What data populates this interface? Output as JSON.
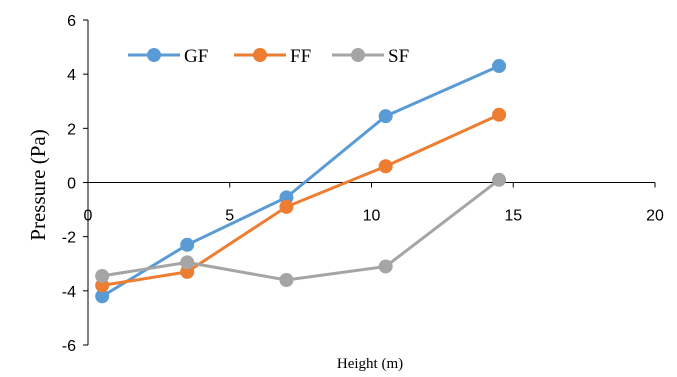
{
  "chart_data": {
    "type": "line",
    "title": "",
    "xlabel": "Height (m)",
    "ylabel": "Pressure  (Pa)",
    "xlim": [
      0,
      20
    ],
    "ylim": [
      -6,
      6
    ],
    "x_ticks": [
      0,
      5,
      10,
      15,
      20
    ],
    "y_ticks": [
      6,
      4,
      2,
      0,
      -2,
      -4,
      -6
    ],
    "grid": false,
    "legend_position": "top-left",
    "series": [
      {
        "name": "GF",
        "color": "#5B9BD5",
        "x": [
          0.5,
          3.5,
          7,
          10.5,
          14.5
        ],
        "y": [
          -4.2,
          -2.3,
          -0.55,
          2.45,
          4.3
        ]
      },
      {
        "name": "FF",
        "color": "#ED7D31",
        "x": [
          0.5,
          3.5,
          7,
          10.5,
          14.5
        ],
        "y": [
          -3.8,
          -3.3,
          -0.9,
          0.6,
          2.5
        ]
      },
      {
        "name": "SF",
        "color": "#A5A5A5",
        "x": [
          0.5,
          3.5,
          7,
          10.5,
          14.5
        ],
        "y": [
          -3.45,
          -2.95,
          -3.6,
          -3.1,
          0.1
        ]
      }
    ]
  }
}
